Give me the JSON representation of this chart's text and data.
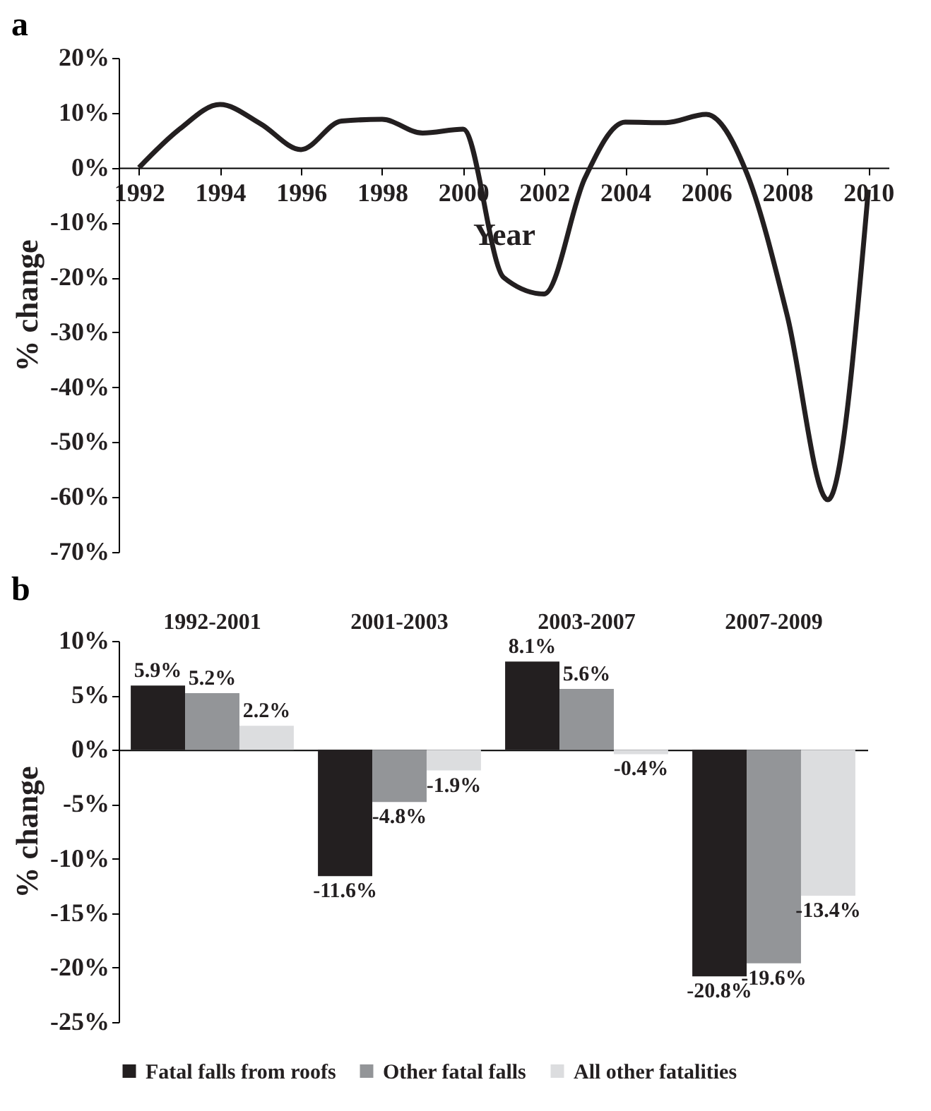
{
  "chart_data": [
    {
      "type": "line",
      "title": "a",
      "xlabel": "Year",
      "ylabel": "% change",
      "x": [
        1992,
        1993,
        1994,
        1995,
        1996,
        1997,
        1998,
        1999,
        2000,
        2001,
        2002,
        2003,
        2004,
        2005,
        2006,
        2007,
        2008,
        2009,
        2010
      ],
      "series": [
        {
          "color": "#231f20",
          "values": [
            0,
            7,
            11.5,
            8,
            3.3,
            8.5,
            8.8,
            6.3,
            7,
            -20,
            -23,
            -2,
            8.3,
            8.2,
            9.7,
            -1,
            -27,
            -60.5,
            -4
          ]
        }
      ],
      "xlim": [
        1991.5,
        2010.5
      ],
      "xticks": [
        1992,
        1994,
        1996,
        1998,
        2000,
        2002,
        2004,
        2006,
        2008,
        2010
      ],
      "ylim": [
        -70,
        20
      ],
      "yticks": [
        {
          "value": -70,
          "label": "-70%"
        },
        {
          "value": -60,
          "label": "-60%"
        },
        {
          "value": -50,
          "label": "-50%"
        },
        {
          "value": -40,
          "label": "-40%"
        },
        {
          "value": -30,
          "label": "-30%"
        },
        {
          "value": -20,
          "label": "-20%"
        },
        {
          "value": -10,
          "label": "-10%"
        },
        {
          "value": 0,
          "label": "0%"
        },
        {
          "value": 10,
          "label": "10%"
        },
        {
          "value": 20,
          "label": "20%"
        }
      ]
    },
    {
      "type": "bar",
      "title": "b",
      "ylabel": "% change",
      "categories": [
        "1992-2001",
        "2001-2003",
        "2003-2007",
        "2007-2009"
      ],
      "series": [
        {
          "name": "Fatal falls from roofs",
          "color": "#231f20",
          "values": [
            5.9,
            -11.6,
            8.1,
            -20.8
          ],
          "value_labels": [
            "5.9%",
            "-11.6%",
            "8.1%",
            "-20.8%"
          ]
        },
        {
          "name": "Other fatal falls",
          "color": "#939598",
          "values": [
            5.2,
            -4.8,
            5.6,
            -19.6
          ],
          "value_labels": [
            "5.2%",
            "-4.8%",
            "5.6%",
            "-19.6%"
          ]
        },
        {
          "name": "All other fatalities",
          "color": "#dcdddf",
          "values": [
            2.2,
            -1.9,
            -0.4,
            -13.4
          ],
          "value_labels": [
            "2.2%",
            "-1.9%",
            "-0.4%",
            "-13.4%"
          ]
        }
      ],
      "ylim": [
        -25,
        10
      ],
      "yticks": [
        {
          "value": -25,
          "label": "-25%"
        },
        {
          "value": -20,
          "label": "-20%"
        },
        {
          "value": -15,
          "label": "-15%"
        },
        {
          "value": -10,
          "label": "-10%"
        },
        {
          "value": -5,
          "label": "-5%"
        },
        {
          "value": 0,
          "label": "0%"
        },
        {
          "value": 5,
          "label": "5%"
        },
        {
          "value": 10,
          "label": "10%"
        }
      ],
      "legend": "bottom"
    }
  ]
}
